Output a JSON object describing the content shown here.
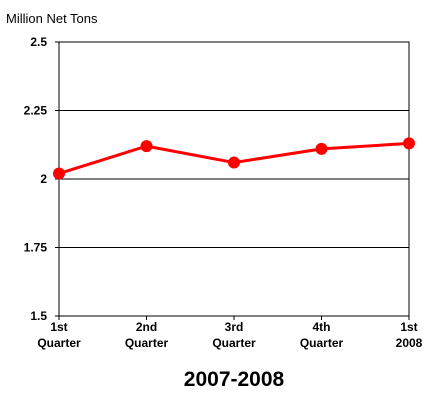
{
  "chart_data": {
    "type": "line",
    "ylabel": "Million Net Tons",
    "xlabel": "2007-2008",
    "categories": [
      [
        "1st",
        "Quarter"
      ],
      [
        "2nd",
        "Quarter"
      ],
      [
        "3rd",
        "Quarter"
      ],
      [
        "4th",
        "Quarter"
      ],
      [
        "1st",
        "2008"
      ]
    ],
    "values": [
      2.02,
      2.12,
      2.06,
      2.11,
      2.13
    ],
    "ylim": [
      1.5,
      2.5
    ],
    "yticks": [
      "1.5",
      "1.75",
      "2",
      "2.25",
      "2.5"
    ],
    "grid": true,
    "colors": {
      "line": "#ff0000",
      "marker": "#ff0000",
      "grid": "#000000",
      "axis": "#000000"
    }
  }
}
